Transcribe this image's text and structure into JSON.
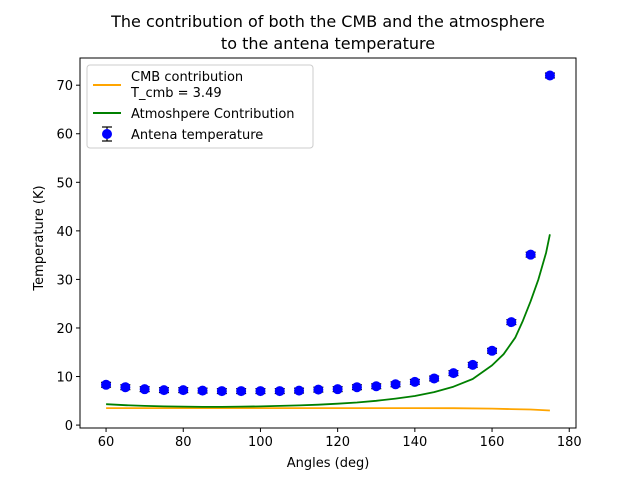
{
  "chart_data": {
    "type": "line",
    "title_line1": "The contribution of both the CMB and the atmosphere",
    "title_line2": "to the antena temperature",
    "xlabel": "Angles (deg)",
    "ylabel": "Temperature (K)",
    "xlim": [
      53.25,
      181.75
    ],
    "ylim": [
      -0.6,
      75.6
    ],
    "xticks": [
      "60",
      "80",
      "100",
      "120",
      "140",
      "160",
      "180"
    ],
    "xtick_values": [
      60,
      80,
      100,
      120,
      140,
      160,
      180
    ],
    "yticks": [
      "0",
      "10",
      "20",
      "30",
      "40",
      "50",
      "60",
      "70"
    ],
    "ytick_values": [
      0,
      10,
      20,
      30,
      40,
      50,
      60,
      70
    ],
    "legend_position": "upper-left",
    "series": [
      {
        "name": "CMB contribution\nT_cmb = 3.49",
        "legend_line1": "CMB contribution",
        "legend_line2": "T_cmb = 3.49",
        "kind": "line",
        "color": "#ffa500",
        "x": [
          60,
          70,
          80,
          90,
          100,
          110,
          120,
          130,
          140,
          150,
          160,
          165,
          170,
          175
        ],
        "y": [
          3.49,
          3.49,
          3.49,
          3.49,
          3.49,
          3.49,
          3.49,
          3.49,
          3.49,
          3.47,
          3.4,
          3.3,
          3.2,
          3.0
        ]
      },
      {
        "name": "Atmoshpere Contribution",
        "kind": "line",
        "color": "#008000",
        "x": [
          60,
          65,
          70,
          75,
          80,
          85,
          90,
          95,
          100,
          105,
          110,
          115,
          120,
          125,
          130,
          135,
          140,
          145,
          150,
          155,
          160,
          163,
          166,
          168,
          170,
          172,
          174,
          175
        ],
        "y": [
          4.3,
          4.1,
          3.95,
          3.85,
          3.8,
          3.75,
          3.75,
          3.8,
          3.85,
          3.95,
          4.05,
          4.2,
          4.4,
          4.65,
          5.0,
          5.45,
          6.0,
          6.8,
          7.9,
          9.5,
          12.3,
          14.6,
          18.0,
          21.5,
          25.5,
          30.0,
          35.5,
          39.3
        ]
      },
      {
        "name": "Antena temperature",
        "kind": "errorbar",
        "color": "#0000ff",
        "x": [
          60,
          65,
          70,
          75,
          80,
          85,
          90,
          95,
          100,
          105,
          110,
          115,
          120,
          125,
          130,
          135,
          140,
          145,
          150,
          155,
          160,
          165,
          170,
          175
        ],
        "y": [
          8.3,
          7.8,
          7.4,
          7.2,
          7.2,
          7.1,
          7.0,
          7.0,
          7.0,
          7.0,
          7.1,
          7.3,
          7.4,
          7.8,
          8.0,
          8.4,
          8.9,
          9.6,
          10.7,
          12.4,
          15.3,
          21.2,
          35.1,
          72.0
        ],
        "yerr": [
          0.5,
          0.5,
          0.5,
          0.5,
          0.5,
          0.5,
          0.5,
          0.5,
          0.5,
          0.5,
          0.5,
          0.5,
          0.5,
          0.5,
          0.5,
          0.5,
          0.5,
          0.5,
          0.5,
          0.5,
          0.5,
          0.5,
          0.5,
          0.5
        ]
      }
    ]
  }
}
